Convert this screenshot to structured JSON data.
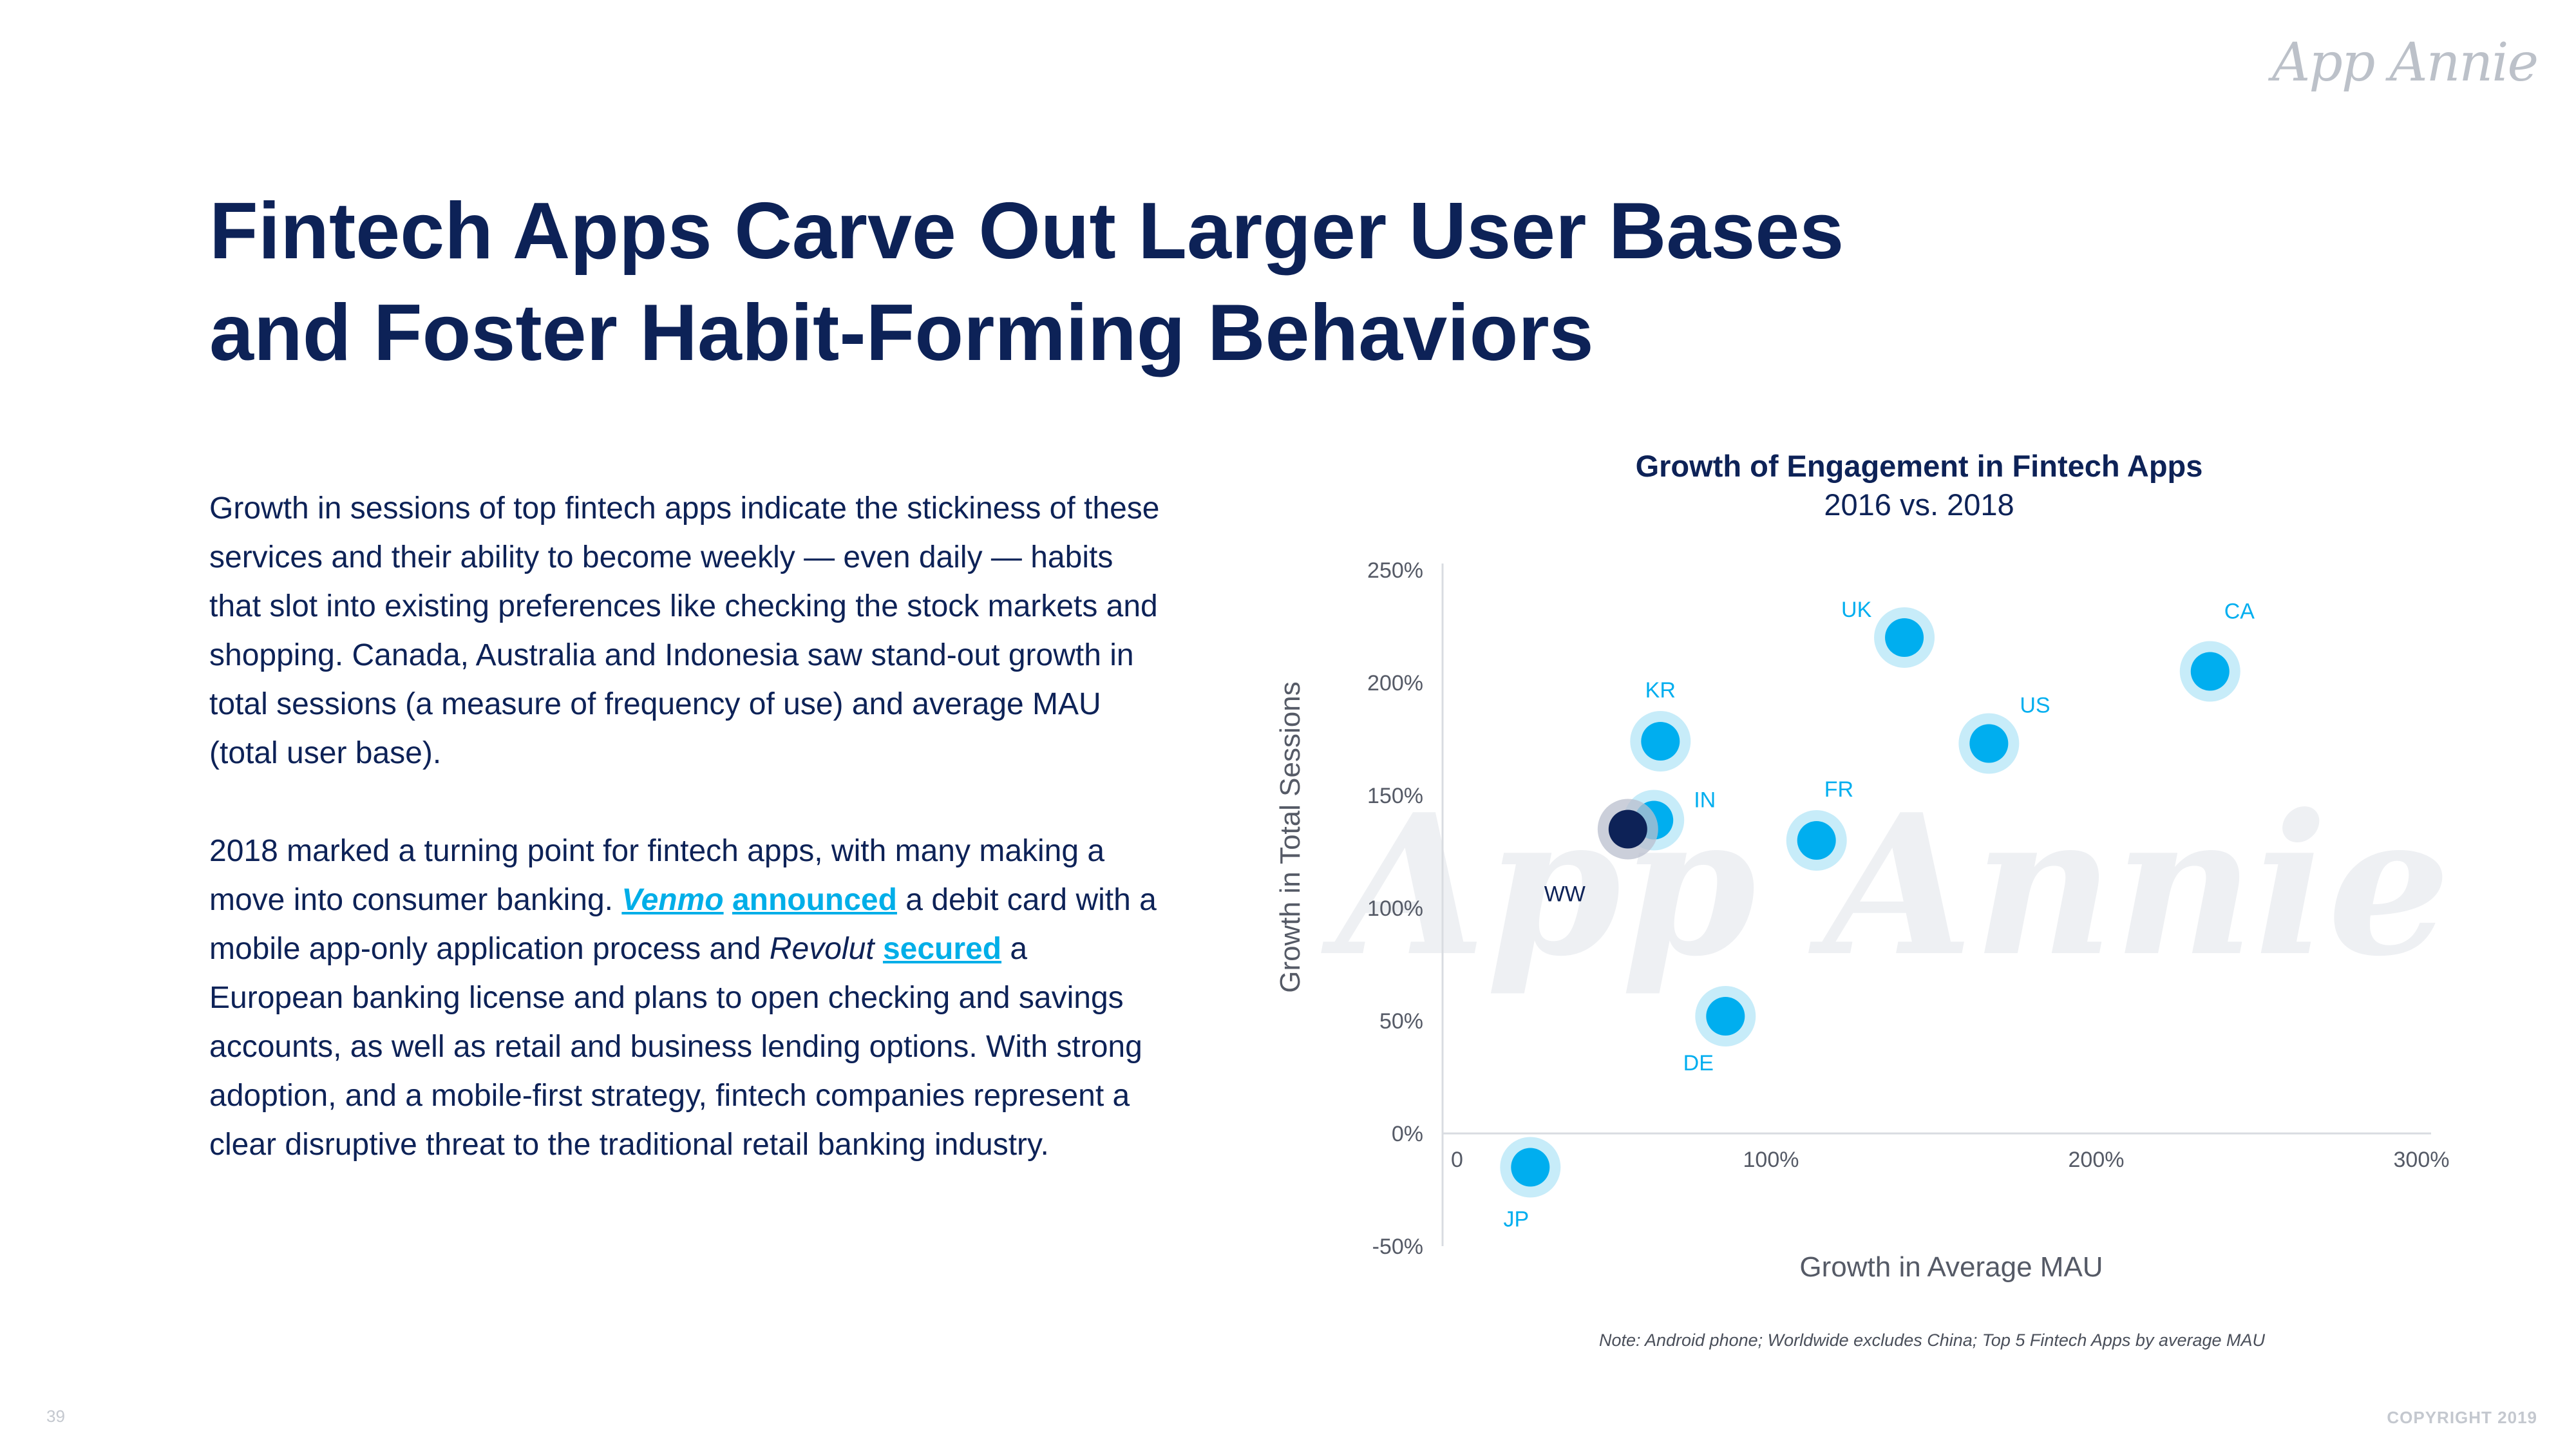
{
  "brand": {
    "logo_text": "App Annie",
    "watermark_text": "App Annie"
  },
  "title": {
    "line1": "Fintech Apps Carve Out Larger User Bases",
    "line2": "and Foster Habit-Forming Behaviors"
  },
  "body": {
    "p1": "Growth in sessions of top fintech apps indicate the stickiness of these services and their ability to become weekly — even daily — habits that slot into existing preferences like checking the stock markets and shopping. Canada, Australia and Indonesia saw stand-out growth in total sessions (a measure of frequency of use) and average MAU (total user base).",
    "p2_a": "2018 marked a turning point for fintech apps, with many making a move into consumer banking. ",
    "link_venmo": "Venmo",
    "link_announced": "announced",
    "p2_b": " a debit card with a mobile app-only application process and ",
    "revolut": "Revolut",
    "link_secured": "secured",
    "p2_c": " a European banking license and plans to open checking and savings accounts, as well as retail and business lending options. With strong adoption, and a mobile-first strategy, fintech companies represent a clear disruptive threat to the traditional retail banking industry."
  },
  "chart_title": "Growth of Engagement in Fintech Apps",
  "chart_subtitle": "2016 vs. 2018",
  "chart_data": {
    "type": "scatter",
    "title": "Growth of Engagement in Fintech Apps",
    "subtitle": "2016 vs. 2018",
    "xlabel": "Growth in Average MAU",
    "ylabel": "Growth in Total Sessions",
    "xlim": [
      0,
      300
    ],
    "ylim": [
      -50,
      250
    ],
    "x_ticks": [
      0,
      100,
      200,
      300
    ],
    "x_tick_labels": [
      "0",
      "100%",
      "200%",
      "300%"
    ],
    "y_ticks": [
      -50,
      0,
      50,
      100,
      150,
      200,
      250
    ],
    "y_tick_labels": [
      "-50%",
      "0%",
      "50%",
      "100%",
      "150%",
      "200%",
      "250%"
    ],
    "points": [
      {
        "label": "UK",
        "x": 141,
        "y": 220,
        "highlight": false
      },
      {
        "label": "CA",
        "x": 235,
        "y": 205,
        "highlight": false
      },
      {
        "label": "KR",
        "x": 66,
        "y": 174,
        "highlight": false
      },
      {
        "label": "US",
        "x": 167,
        "y": 173,
        "highlight": false
      },
      {
        "label": "IN",
        "x": 64,
        "y": 139,
        "highlight": false
      },
      {
        "label": "FR",
        "x": 114,
        "y": 130,
        "highlight": false
      },
      {
        "label": "WW",
        "x": 56,
        "y": 135,
        "highlight": true
      },
      {
        "label": "DE",
        "x": 86,
        "y": 52,
        "highlight": false
      },
      {
        "label": "JP",
        "x": 26,
        "y": -15,
        "highlight": false
      }
    ],
    "colors": {
      "point": "#00aeef",
      "halo": "#c7ecf9",
      "highlight": "#0d2257",
      "label": "#00aeef",
      "highlight_label": "#0d2257"
    }
  },
  "note": "Note: Android phone; Worldwide excludes China; Top 5 Fintech Apps by average MAU",
  "page_number": "39",
  "copyright": "COPYRIGHT 2019"
}
